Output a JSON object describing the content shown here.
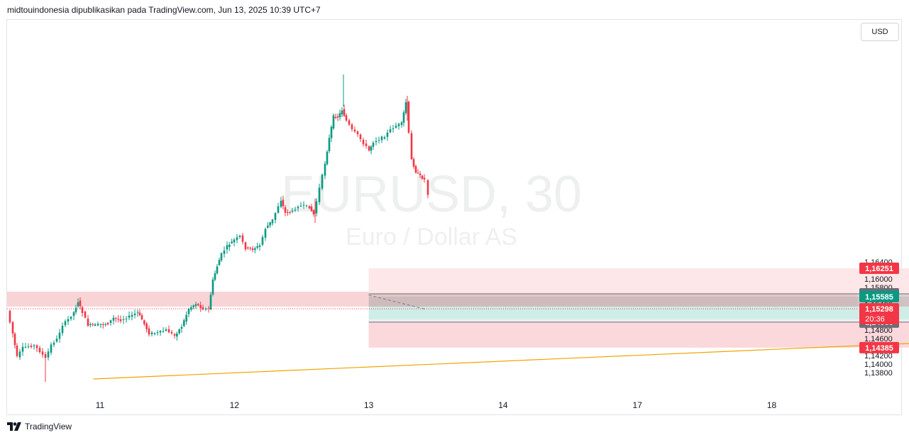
{
  "header": {
    "title": "midtouindonesia dipublikasikan pada TradingView.com, Jun 13, 2025 10:39 UTC+7"
  },
  "currency_button": {
    "label": "USD"
  },
  "watermark": {
    "symbol": "EURUSD, 30",
    "description": "Euro / Dollar AS"
  },
  "footer": {
    "brand": "TradingView"
  },
  "colors": {
    "up": "#089981",
    "down": "#f23645",
    "support_line": "#f0a400",
    "zone": "#f7c5c9",
    "target": "#c9ebe4",
    "stop": "#fde4e6",
    "stop_lower": "#fbd4d7"
  },
  "chart_data": {
    "type": "candlestick",
    "symbol": "EURUSD",
    "timeframe": "30",
    "y_range": [
      1.1363,
      1.1663
    ],
    "y_ticks": [
      "1,13800",
      "1,14000",
      "1,14200",
      "1,14600",
      "1,14800",
      "1,15400",
      "1,15800",
      "1,16000",
      "1,16400"
    ],
    "x_ticks": [
      "11",
      "12",
      "13",
      "14",
      "17",
      "18"
    ],
    "current_price": {
      "value": "1,15298",
      "countdown": "20:36"
    },
    "price_labels": [
      {
        "value": "1,16251",
        "style": "red"
      },
      {
        "value": "1,15651",
        "style": "grey"
      },
      {
        "value": "1,15585",
        "style": "green"
      },
      {
        "value": "1,15051",
        "style": "green"
      },
      {
        "value": "1,14985",
        "style": "grey"
      },
      {
        "value": "1,14385",
        "style": "red"
      }
    ],
    "zone": {
      "from": 1.1535,
      "to": 1.157
    },
    "position": {
      "start_day": 13.0,
      "end_day": 17.55,
      "stop_top": 1.16251,
      "stop_bottom": 1.14385,
      "entry_upper": 1.15651,
      "entry_lower": 1.14985,
      "target_upper": 1.15585,
      "target_lower": 1.15051
    },
    "support_line": {
      "from": {
        "day": 10.95,
        "price": 1.1365
      },
      "to": {
        "day": 18.6,
        "price": 1.147
      }
    },
    "dashed_line": {
      "from": {
        "day": 13.0,
        "price": 1.1562
      },
      "to": {
        "day": 13.42,
        "price": 1.1529
      }
    }
  }
}
